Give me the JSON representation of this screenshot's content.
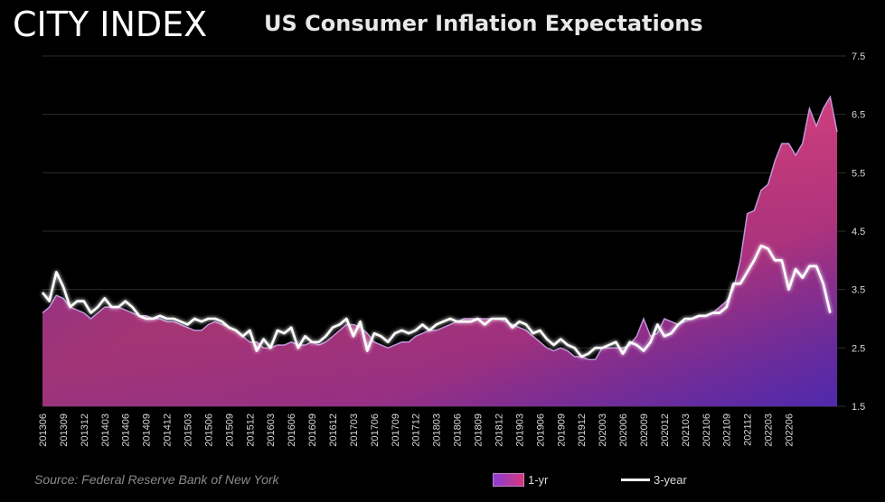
{
  "brand": {
    "logo_text": "CITY INDEX"
  },
  "source_note": "Source: Federal Reserve Bank of New York",
  "colors": {
    "background": "#000000",
    "gradient_top": "#7a35c6",
    "gradient_mid": "#d1407c",
    "gradient_bottom": "#5a2fc8",
    "line_3yr": "#ffffff",
    "grid": "#2b2b2b"
  },
  "chart_data": {
    "type": "area",
    "title": "US Consumer Inflation Expectations",
    "xlabel": "",
    "ylabel": "",
    "ylim": [
      1.5,
      7.5
    ],
    "yticks": [
      1.5,
      2.5,
      3.5,
      4.5,
      5.5,
      6.5,
      7.5
    ],
    "ytick_labels": [
      "1.5",
      "2.5",
      "3.5",
      "4.5",
      "5.5",
      "6.5",
      "7.5"
    ],
    "grid": true,
    "legend": "bottom",
    "x_tick_labels": [
      "201306",
      "201309",
      "201312",
      "201403",
      "201406",
      "201409",
      "201412",
      "201503",
      "201506",
      "201509",
      "201512",
      "201603",
      "201606",
      "201609",
      "201612",
      "201703",
      "201706",
      "201709",
      "201712",
      "201803",
      "201806",
      "201809",
      "201812",
      "201903",
      "201906",
      "201909",
      "201912",
      "202003",
      "202006",
      "202009",
      "202012",
      "202103",
      "202106",
      "202109",
      "202112",
      "202203",
      "202206"
    ],
    "series": [
      {
        "name": "1-yr",
        "style": "gradient-area",
        "start": "201306",
        "values": [
          3.1,
          3.2,
          3.4,
          3.35,
          3.2,
          3.15,
          3.1,
          3.0,
          3.1,
          3.2,
          3.2,
          3.2,
          3.15,
          3.1,
          3.05,
          3.05,
          3.0,
          3.0,
          2.95,
          2.95,
          2.9,
          2.85,
          2.8,
          2.8,
          2.9,
          2.95,
          2.9,
          2.85,
          2.8,
          2.7,
          2.6,
          2.6,
          2.5,
          2.5,
          2.55,
          2.55,
          2.6,
          2.55,
          2.55,
          2.6,
          2.55,
          2.6,
          2.7,
          2.8,
          2.9,
          2.9,
          2.85,
          2.75,
          2.6,
          2.55,
          2.5,
          2.55,
          2.6,
          2.6,
          2.7,
          2.75,
          2.8,
          2.8,
          2.85,
          2.9,
          2.95,
          3.0,
          3.0,
          3.0,
          3.0,
          3.0,
          3.0,
          2.95,
          2.9,
          2.85,
          2.8,
          2.7,
          2.6,
          2.5,
          2.45,
          2.5,
          2.45,
          2.35,
          2.35,
          2.3,
          2.3,
          2.5,
          2.5,
          2.5,
          2.5,
          2.55,
          2.7,
          3.0,
          2.7,
          2.75,
          3.0,
          2.95,
          2.9,
          2.95,
          3.0,
          3.05,
          3.05,
          3.1,
          3.2,
          3.3,
          3.5,
          4.0,
          4.8,
          4.85,
          5.2,
          5.3,
          5.7,
          6.0,
          6.0,
          5.8,
          6.0,
          6.6,
          6.3,
          6.6,
          6.8,
          6.2
        ]
      },
      {
        "name": "3-year",
        "style": "line",
        "start": "201306",
        "values": [
          3.45,
          3.3,
          3.8,
          3.55,
          3.2,
          3.3,
          3.3,
          3.1,
          3.2,
          3.35,
          3.2,
          3.2,
          3.3,
          3.2,
          3.05,
          3.0,
          3.0,
          3.05,
          3.0,
          3.0,
          2.95,
          2.9,
          3.0,
          2.95,
          3.0,
          3.0,
          2.95,
          2.85,
          2.8,
          2.7,
          2.8,
          2.45,
          2.65,
          2.5,
          2.8,
          2.75,
          2.85,
          2.5,
          2.7,
          2.6,
          2.6,
          2.7,
          2.85,
          2.9,
          3.0,
          2.7,
          2.95,
          2.45,
          2.75,
          2.7,
          2.6,
          2.75,
          2.8,
          2.75,
          2.8,
          2.9,
          2.8,
          2.9,
          2.95,
          3.0,
          2.95,
          2.95,
          2.95,
          3.0,
          2.9,
          3.0,
          3.0,
          3.0,
          2.85,
          2.95,
          2.9,
          2.75,
          2.8,
          2.65,
          2.55,
          2.65,
          2.55,
          2.5,
          2.35,
          2.4,
          2.5,
          2.5,
          2.55,
          2.6,
          2.4,
          2.6,
          2.55,
          2.45,
          2.6,
          2.9,
          2.7,
          2.75,
          2.9,
          3.0,
          3.0,
          3.05,
          3.05,
          3.1,
          3.1,
          3.2,
          3.6,
          3.6,
          3.8,
          4.0,
          4.25,
          4.2,
          4.0,
          4.0,
          3.5,
          3.85,
          3.7,
          3.9,
          3.9,
          3.6,
          3.1
        ]
      }
    ]
  }
}
